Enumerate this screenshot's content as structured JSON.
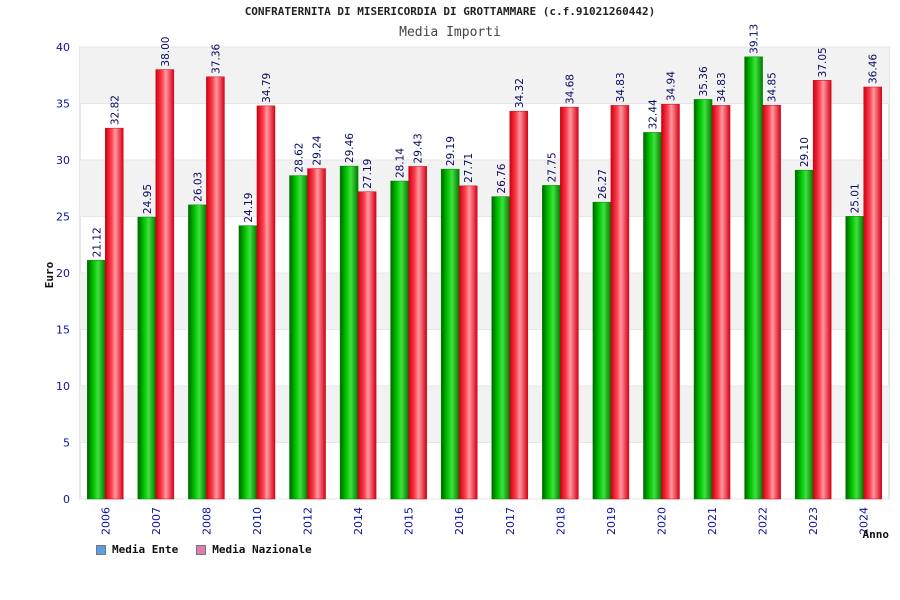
{
  "chart_data": {
    "type": "bar",
    "title": "CONFRATERNITA DI MISERICORDIA DI GROTTAMMARE (c.f.91021260442)",
    "subtitle": "Media Importi",
    "xlabel": "Anno",
    "ylabel": "Euro",
    "ylim": [
      0,
      40
    ],
    "yticks": [
      0,
      5,
      10,
      15,
      20,
      25,
      30,
      35,
      40
    ],
    "categories": [
      "2006",
      "2007",
      "2008",
      "2010",
      "2012",
      "2014",
      "2015",
      "2016",
      "2017",
      "2018",
      "2019",
      "2020",
      "2021",
      "2022",
      "2023",
      "2024"
    ],
    "series": [
      {
        "name": "Media Ente",
        "color": "#00b000",
        "legend_color": "#5b9ee6",
        "values": [
          21.12,
          24.95,
          26.03,
          24.19,
          28.62,
          29.46,
          28.14,
          29.19,
          26.76,
          27.75,
          26.27,
          32.44,
          35.36,
          39.13,
          29.1,
          25.01
        ],
        "labels": [
          "21.12",
          "24.95",
          "26.03",
          "24.19",
          "28.62",
          "29.46",
          "28.14",
          "29.19",
          "26.76",
          "27.75",
          "26.27",
          "32.44",
          "35.36",
          "39.13",
          "29.10",
          "25.01"
        ]
      },
      {
        "name": "Media Nazionale",
        "color": "#ee1c2c",
        "legend_color": "#e07ab0",
        "values": [
          32.82,
          38.0,
          37.36,
          34.79,
          29.24,
          27.19,
          29.43,
          27.71,
          34.32,
          34.68,
          34.83,
          34.94,
          34.83,
          34.85,
          37.05,
          36.46
        ],
        "labels": [
          "32.82",
          "38.00",
          "37.36",
          "34.79",
          "29.24",
          "27.19",
          "29.43",
          "27.71",
          "34.32",
          "34.68",
          "34.83",
          "34.94",
          "34.83",
          "34.85",
          "37.05",
          "36.46"
        ]
      }
    ],
    "grid": true,
    "legend_position": "bottom-left",
    "colors": {
      "axis_text": "#1010a0",
      "grid": "#e6e6e6",
      "band": "#f2f2f2"
    }
  }
}
